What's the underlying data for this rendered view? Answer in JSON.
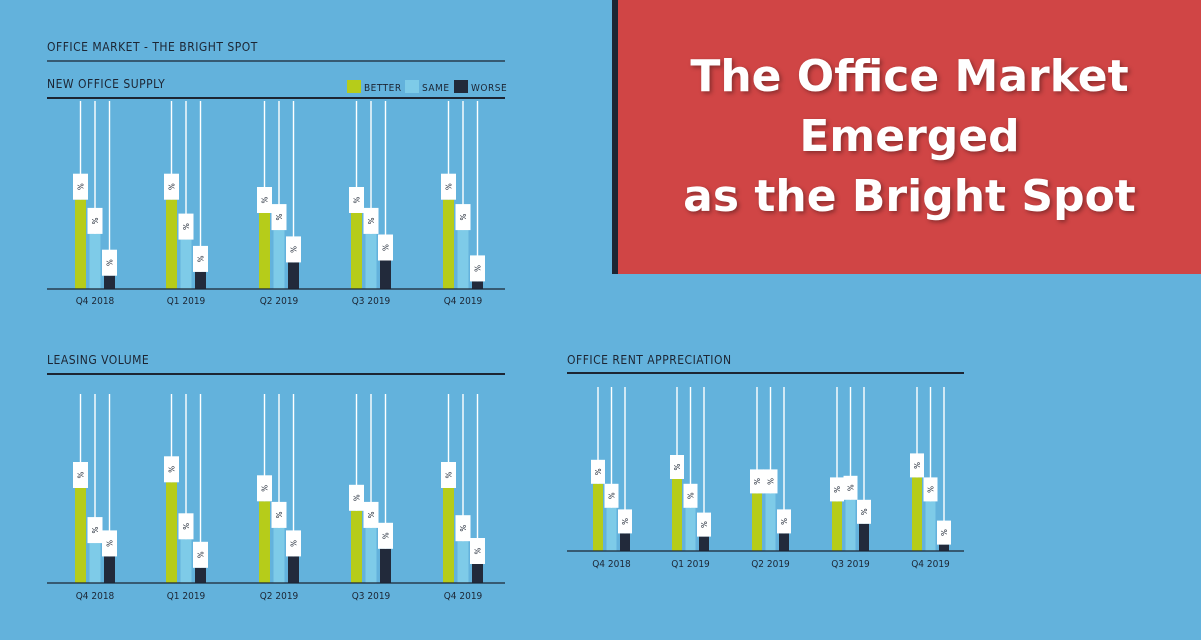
{
  "headline": {
    "lines": [
      "The Office Market",
      "Emerged",
      "as the Bright Spot"
    ]
  },
  "section_heading": "OFFICE MARKET - THE BRIGHT SPOT",
  "legend": [
    {
      "label": "BETTER",
      "color": "#b6cc1a"
    },
    {
      "label": "SAME",
      "color": "#7ecbe8"
    },
    {
      "label": "WORSE",
      "color": "#222a3b"
    }
  ],
  "colors": {
    "background": "#63b2dc",
    "title_box": "#d04545",
    "axis": "#1c2533",
    "tag": "#ffffff"
  },
  "value_tag_text": "%",
  "chart_data": [
    {
      "type": "bar",
      "title": "NEW OFFICE SUPPLY",
      "categories": [
        "Q4 2018",
        "Q1 2019",
        "Q2 2019",
        "Q3 2019",
        "Q4 2019"
      ],
      "ylim": [
        0,
        100
      ],
      "series": [
        {
          "name": "BETTER",
          "values": [
            47,
            47,
            40,
            40,
            47
          ]
        },
        {
          "name": "SAME",
          "values": [
            29,
            26,
            31,
            29,
            31
          ]
        },
        {
          "name": "WORSE",
          "values": [
            7,
            9,
            14,
            15,
            4
          ]
        }
      ]
    },
    {
      "type": "bar",
      "title": "LEASING VOLUME",
      "categories": [
        "Q4 2018",
        "Q1 2019",
        "Q2 2019",
        "Q3 2019",
        "Q4 2019"
      ],
      "ylim": [
        0,
        100
      ],
      "series": [
        {
          "name": "BETTER",
          "values": [
            50,
            53,
            43,
            38,
            50
          ]
        },
        {
          "name": "SAME",
          "values": [
            21,
            23,
            29,
            29,
            22
          ]
        },
        {
          "name": "WORSE",
          "values": [
            14,
            8,
            14,
            18,
            10
          ]
        }
      ]
    },
    {
      "type": "bar",
      "title": "OFFICE RENT APPRECIATION",
      "categories": [
        "Q4 2018",
        "Q1 2019",
        "Q2 2019",
        "Q3 2019",
        "Q4 2019"
      ],
      "ylim": [
        0,
        100
      ],
      "series": [
        {
          "name": "BETTER",
          "values": [
            42,
            45,
            36,
            31,
            46
          ]
        },
        {
          "name": "SAME",
          "values": [
            27,
            27,
            36,
            32,
            31
          ]
        },
        {
          "name": "WORSE",
          "values": [
            11,
            9,
            11,
            17,
            4
          ]
        }
      ]
    }
  ]
}
